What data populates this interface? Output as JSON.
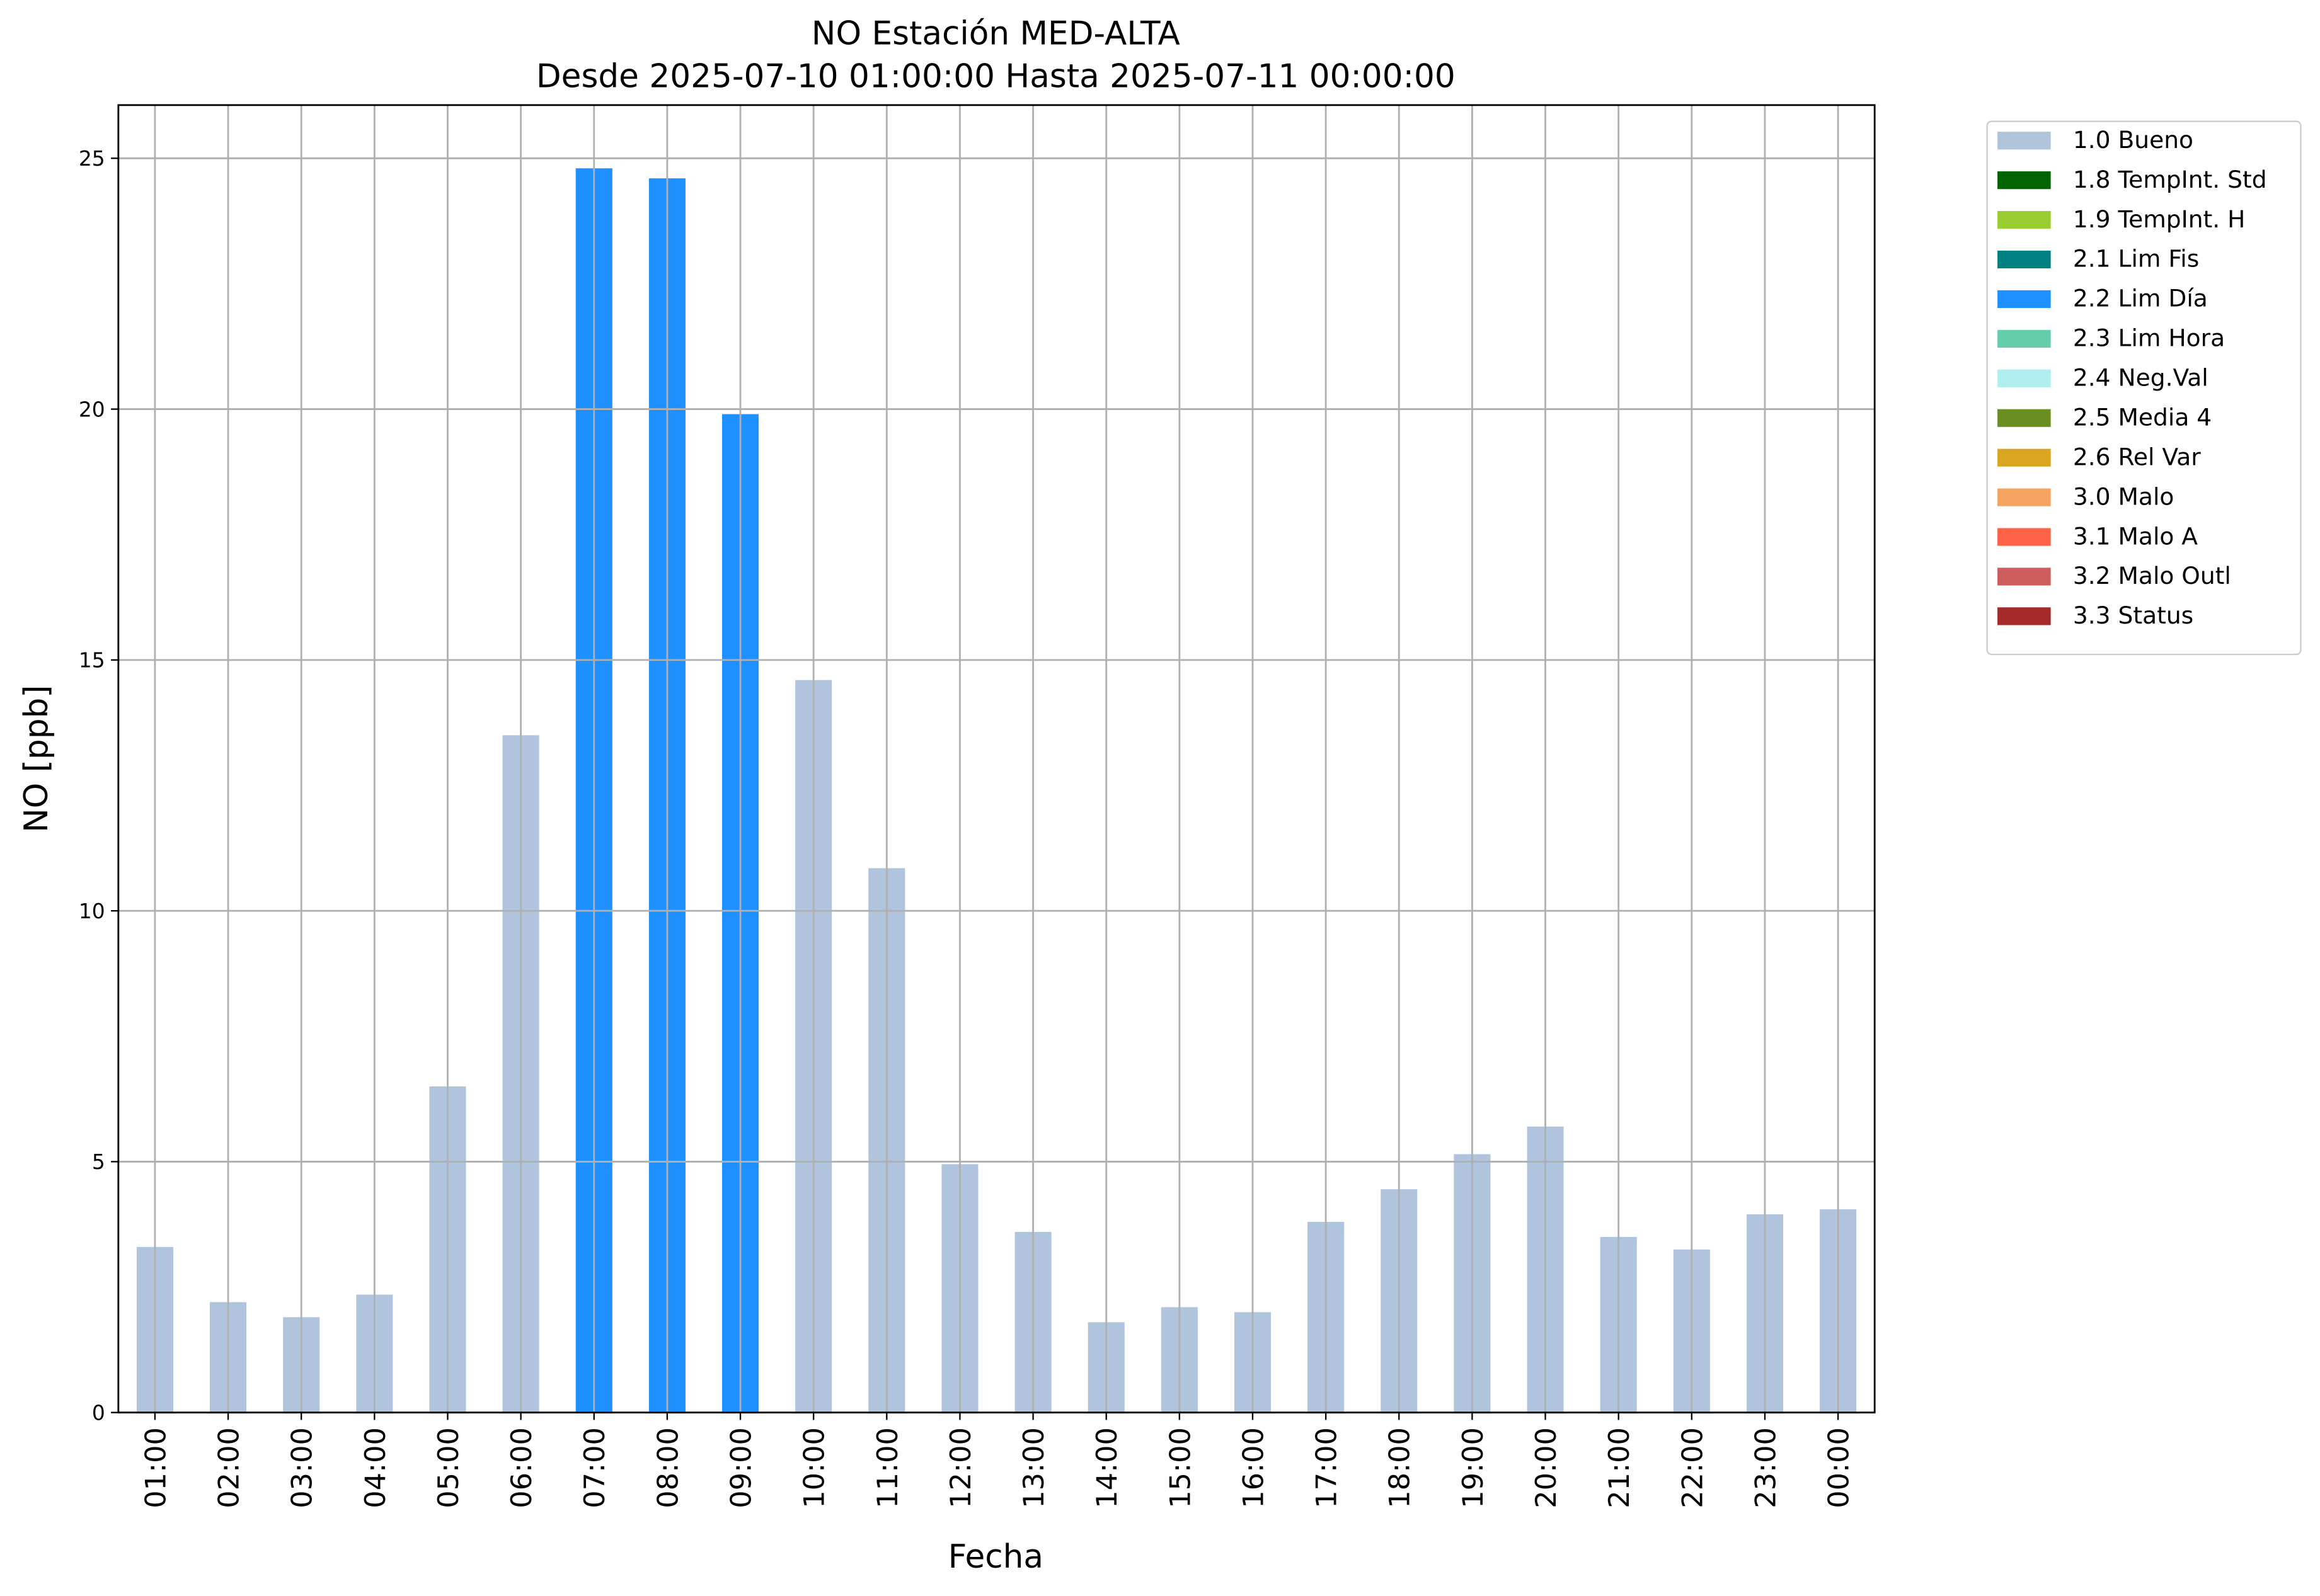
{
  "chart_data": {
    "type": "bar",
    "stacked": true,
    "title": "NO Estación MED-ALTA",
    "subtitle": "Desde 2025-07-10 01:00:00 Hasta 2025-07-11 00:00:00",
    "x_label": "Fecha",
    "y_label": "NO [ppb]",
    "categories": [
      "01:00",
      "02:00",
      "03:00",
      "04:00",
      "05:00",
      "06:00",
      "07:00",
      "08:00",
      "09:00",
      "10:00",
      "11:00",
      "12:00",
      "13:00",
      "14:00",
      "15:00",
      "16:00",
      "17:00",
      "18:00",
      "19:00",
      "20:00",
      "21:00",
      "22:00",
      "23:00",
      "00:00"
    ],
    "series": [
      {
        "name": "1.0 Bueno",
        "color": "#b0c4de",
        "values": [
          3.3,
          2.2,
          1.9,
          2.35,
          6.5,
          13.5,
          null,
          null,
          null,
          14.6,
          10.85,
          4.95,
          3.6,
          1.8,
          2.1,
          2.0,
          3.8,
          4.45,
          5.15,
          5.7,
          3.5,
          3.25,
          3.95,
          4.05
        ]
      },
      {
        "name": "1.8 TempInt. Std",
        "color": "#006400",
        "values": [
          null,
          null,
          null,
          null,
          null,
          null,
          null,
          null,
          null,
          null,
          null,
          null,
          null,
          null,
          null,
          null,
          null,
          null,
          null,
          null,
          null,
          null,
          null,
          null
        ]
      },
      {
        "name": "1.9 TempInt. H",
        "color": "#9acd32",
        "values": [
          null,
          null,
          null,
          null,
          null,
          null,
          null,
          null,
          null,
          null,
          null,
          null,
          null,
          null,
          null,
          null,
          null,
          null,
          null,
          null,
          null,
          null,
          null,
          null
        ]
      },
      {
        "name": "2.1 Lim Fis",
        "color": "#008080",
        "values": [
          null,
          null,
          null,
          null,
          null,
          null,
          null,
          null,
          null,
          null,
          null,
          null,
          null,
          null,
          null,
          null,
          null,
          null,
          null,
          null,
          null,
          null,
          null,
          null
        ]
      },
      {
        "name": "2.2 Lim Día",
        "color": "#1e90ff",
        "values": [
          null,
          null,
          null,
          null,
          null,
          null,
          24.8,
          24.6,
          19.9,
          null,
          null,
          null,
          null,
          null,
          null,
          null,
          null,
          null,
          null,
          null,
          null,
          null,
          null,
          null
        ]
      },
      {
        "name": "2.3 Lim Hora",
        "color": "#66cdaa",
        "values": [
          null,
          null,
          null,
          null,
          null,
          null,
          null,
          null,
          null,
          null,
          null,
          null,
          null,
          null,
          null,
          null,
          null,
          null,
          null,
          null,
          null,
          null,
          null,
          null
        ]
      },
      {
        "name": "2.4 Neg.Val",
        "color": "#afeeee",
        "values": [
          null,
          null,
          null,
          null,
          null,
          null,
          null,
          null,
          null,
          null,
          null,
          null,
          null,
          null,
          null,
          null,
          null,
          null,
          null,
          null,
          null,
          null,
          null,
          null
        ]
      },
      {
        "name": "2.5 Media 4",
        "color": "#6b8e23",
        "values": [
          null,
          null,
          null,
          null,
          null,
          null,
          null,
          null,
          null,
          null,
          null,
          null,
          null,
          null,
          null,
          null,
          null,
          null,
          null,
          null,
          null,
          null,
          null,
          null
        ]
      },
      {
        "name": "2.6 Rel Var",
        "color": "#daa520",
        "values": [
          null,
          null,
          null,
          null,
          null,
          null,
          null,
          null,
          null,
          null,
          null,
          null,
          null,
          null,
          null,
          null,
          null,
          null,
          null,
          null,
          null,
          null,
          null,
          null
        ]
      },
      {
        "name": "3.0 Malo",
        "color": "#f4a460",
        "values": [
          null,
          null,
          null,
          null,
          null,
          null,
          null,
          null,
          null,
          null,
          null,
          null,
          null,
          null,
          null,
          null,
          null,
          null,
          null,
          null,
          null,
          null,
          null,
          null
        ]
      },
      {
        "name": "3.1 Malo A",
        "color": "#ff6347",
        "values": [
          null,
          null,
          null,
          null,
          null,
          null,
          null,
          null,
          null,
          null,
          null,
          null,
          null,
          null,
          null,
          null,
          null,
          null,
          null,
          null,
          null,
          null,
          null,
          null
        ]
      },
      {
        "name": "3.2 Malo Outl",
        "color": "#cd5c5c",
        "values": [
          null,
          null,
          null,
          null,
          null,
          null,
          null,
          null,
          null,
          null,
          null,
          null,
          null,
          null,
          null,
          null,
          null,
          null,
          null,
          null,
          null,
          null,
          null,
          null
        ]
      },
      {
        "name": "3.3 Status",
        "color": "#a52a2a",
        "values": [
          null,
          null,
          null,
          null,
          null,
          null,
          null,
          null,
          null,
          null,
          null,
          null,
          null,
          null,
          null,
          null,
          null,
          null,
          null,
          null,
          null,
          null,
          null,
          null
        ]
      }
    ],
    "ylim": [
      0,
      26.06
    ],
    "yticks": [
      0,
      5,
      10,
      15,
      20,
      25
    ],
    "grid": true,
    "legend": "outside right"
  }
}
